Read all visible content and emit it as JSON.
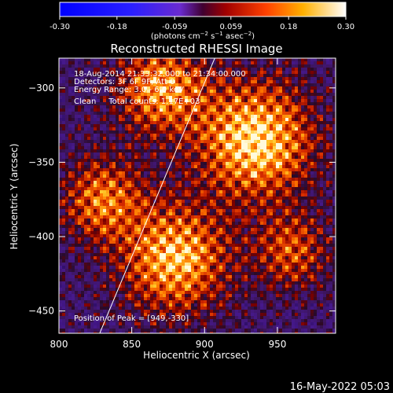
{
  "colorbar": {
    "ticks": [
      "-0.30",
      "-0.18",
      "-0.059",
      "0.059",
      "0.18",
      "0.30"
    ],
    "tick_values": [
      -0.3,
      -0.18,
      -0.059,
      0.059,
      0.18,
      0.3
    ],
    "range": [
      -0.3,
      0.3
    ],
    "units_html": "(photons cm<tspan baseline-shift=\"super\" font-size=\"7\">−2</tspan> s<tspan baseline-shift=\"super\" font-size=\"7\">−1</tspan> asec<tspan baseline-shift=\"super\" font-size=\"7\">−2</tspan>)",
    "units": "(photons cm-2 s-1 asec-2)"
  },
  "chart_data": {
    "type": "heatmap",
    "title": "Reconstructed RHESSI Image",
    "xlabel": "Heliocentric X (arcsec)",
    "ylabel": "Heliocentric Y (arcsec)",
    "xlim": [
      800,
      990
    ],
    "ylim": [
      -465,
      -280
    ],
    "xticks": [
      800,
      850,
      900,
      950
    ],
    "yticks": [
      -300,
      -350,
      -400,
      -450
    ],
    "xtick_labels": [
      "800",
      "850",
      "900",
      "950"
    ],
    "ytick_labels": [
      "−300",
      "−350",
      "−400",
      "−450"
    ],
    "annotations": [
      "18-Aug-2014 21:33:32.000 to 21:34:00.000",
      "Detectors: 3F 6F 9F, Att 0",
      "Energy Range: 3.0 - 6.0 keV",
      "Clean     Total counts: 1.17E+03"
    ],
    "peak_label": "Position of Peak = [949,-330]",
    "peak": [
      949,
      -330
    ],
    "limb_line": [
      [
        828,
        -465
      ],
      [
        907,
        -280
      ]
    ],
    "sources": [
      {
        "x": 935,
        "y": -335,
        "peak": 0.3,
        "sigma": 28
      },
      {
        "x": 870,
        "y": -300,
        "peak": 0.22,
        "sigma": 22
      },
      {
        "x": 880,
        "y": -415,
        "peak": 0.26,
        "sigma": 26
      },
      {
        "x": 830,
        "y": -375,
        "peak": 0.18,
        "sigma": 20
      },
      {
        "x": 960,
        "y": -410,
        "peak": 0.14,
        "sigma": 18
      }
    ]
  },
  "footer": {
    "date": "16-May-2022 05:03"
  }
}
